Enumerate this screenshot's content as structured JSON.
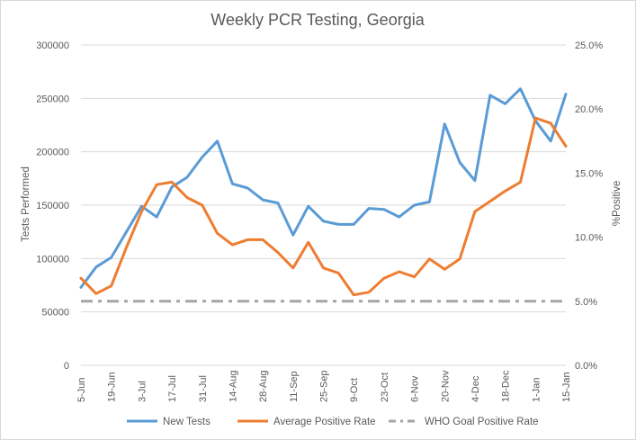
{
  "chart_data": {
    "type": "line",
    "title": "Weekly PCR Testing, Georgia",
    "ylabel_left": "Tests Performed",
    "ylabel_right": "%Positive",
    "y_left_lim": [
      0,
      300000
    ],
    "y_right_lim": [
      0,
      25
    ],
    "y_left_ticks": [
      "0",
      "50000",
      "100000",
      "150000",
      "200000",
      "250000",
      "300000"
    ],
    "y_right_ticks": [
      "0.0%",
      "5.0%",
      "10.0%",
      "15.0%",
      "20.0%",
      "25.0%"
    ],
    "x_tick_labels": [
      "5-Jun",
      "19-Jun",
      "3-Jul",
      "17-Jul",
      "31-Jul",
      "14-Aug",
      "28-Aug",
      "11-Sep",
      "25-Sep",
      "9-Oct",
      "23-Oct",
      "6-Nov",
      "20-Nov",
      "4-Dec",
      "18-Dec",
      "1-Jan",
      "15-Jan"
    ],
    "x": [
      "5-Jun",
      "12-Jun",
      "19-Jun",
      "26-Jun",
      "3-Jul",
      "10-Jul",
      "17-Jul",
      "24-Jul",
      "31-Jul",
      "7-Aug",
      "14-Aug",
      "21-Aug",
      "28-Aug",
      "4-Sep",
      "11-Sep",
      "18-Sep",
      "25-Sep",
      "2-Oct",
      "9-Oct",
      "16-Oct",
      "23-Oct",
      "30-Oct",
      "6-Nov",
      "13-Nov",
      "20-Nov",
      "27-Nov",
      "4-Dec",
      "11-Dec",
      "18-Dec",
      "25-Dec",
      "1-Jan",
      "8-Jan",
      "15-Jan"
    ],
    "grid": true,
    "legend_position": "bottom",
    "series": [
      {
        "name": "New Tests",
        "axis": "left",
        "color": "#5b9bd5",
        "dash": "solid",
        "values": [
          73000,
          92000,
          101000,
          125000,
          149000,
          139000,
          167000,
          176000,
          195000,
          210000,
          170000,
          166000,
          155000,
          152000,
          122000,
          149000,
          135000,
          132000,
          132000,
          147000,
          146000,
          139000,
          150000,
          153000,
          226000,
          190000,
          173000,
          253000,
          245000,
          259000,
          229000,
          210000,
          254000
        ]
      },
      {
        "name": "Average Positive Rate",
        "axis": "right",
        "color": "#ed7d31",
        "dash": "solid",
        "values": [
          6.8,
          5.6,
          6.2,
          9.2,
          12.0,
          14.1,
          14.3,
          13.1,
          12.5,
          10.3,
          9.4,
          9.8,
          9.8,
          8.8,
          7.6,
          9.6,
          7.6,
          7.2,
          5.5,
          5.7,
          6.8,
          7.3,
          6.9,
          8.3,
          7.5,
          8.3,
          12.0,
          12.8,
          13.6,
          14.3,
          19.3,
          18.9,
          17.1
        ]
      },
      {
        "name": "WHO Goal Positive Rate",
        "axis": "right",
        "color": "#a5a5a5",
        "dash": "dashdot",
        "values": [
          5,
          5,
          5,
          5,
          5,
          5,
          5,
          5,
          5,
          5,
          5,
          5,
          5,
          5,
          5,
          5,
          5,
          5,
          5,
          5,
          5,
          5,
          5,
          5,
          5,
          5,
          5,
          5,
          5,
          5,
          5,
          5,
          5
        ]
      }
    ]
  }
}
